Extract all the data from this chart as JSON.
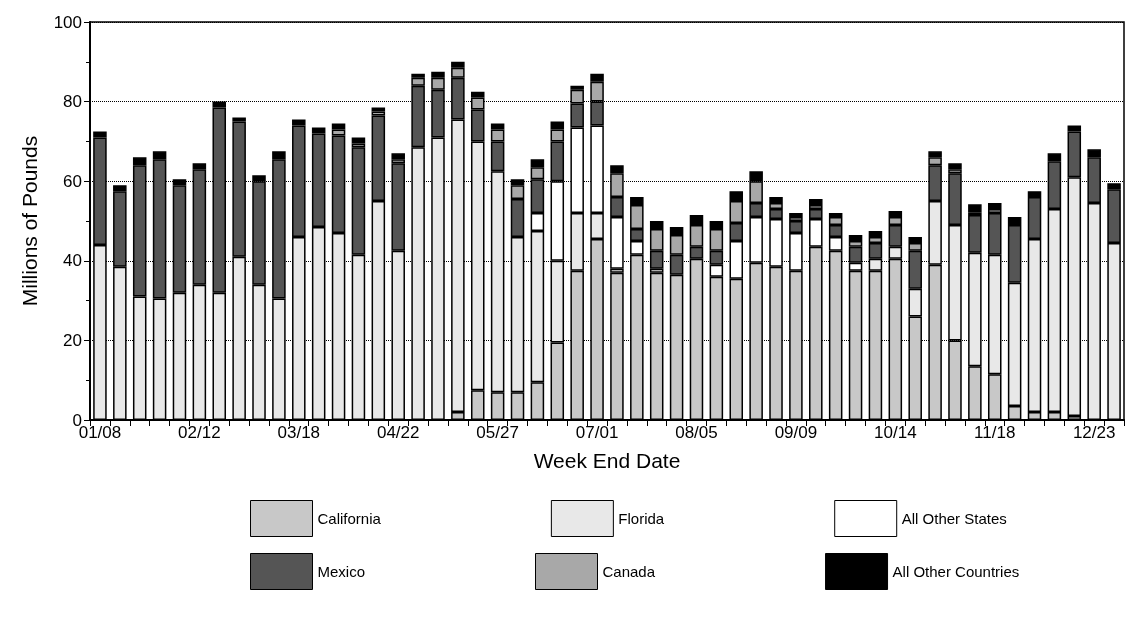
{
  "chart_data": {
    "type": "bar",
    "stacked": true,
    "xlabel": "Week End Date",
    "ylabel": "Millions of Pounds",
    "categories": [
      "01/08",
      null,
      null,
      null,
      null,
      "02/12",
      null,
      null,
      null,
      null,
      "03/18",
      null,
      null,
      null,
      null,
      "04/22",
      null,
      null,
      null,
      null,
      "05/27",
      null,
      null,
      null,
      null,
      "07/01",
      null,
      null,
      null,
      null,
      "08/05",
      null,
      null,
      null,
      null,
      "09/09",
      null,
      null,
      null,
      null,
      "10/14",
      null,
      null,
      null,
      null,
      "11/18",
      null,
      null,
      null,
      null,
      "12/23",
      null
    ],
    "series": [
      {
        "name": "California",
        "color": "#c8c8c8",
        "values": [
          0,
          0,
          0,
          0,
          0,
          0,
          0,
          0,
          0,
          0,
          0,
          0,
          0,
          0,
          0,
          0,
          0,
          0,
          2,
          7.5,
          7,
          7,
          9.5,
          19.5,
          37.5,
          45.5,
          37,
          41.5,
          37,
          36.5,
          40.5,
          36,
          35.5,
          39.5,
          38.5,
          37.5,
          43.5,
          42.5,
          37.5,
          37.5,
          40.5,
          26,
          39,
          20,
          13.5,
          11.5,
          3.5,
          2,
          2,
          1,
          0,
          0
        ]
      },
      {
        "name": "Florida",
        "color": "#e8e8e8",
        "values": [
          44,
          38.5,
          31,
          30.5,
          32,
          34,
          32,
          41,
          34,
          30.5,
          46,
          48.5,
          47,
          41.5,
          55,
          42.5,
          68.5,
          71,
          73.5,
          62.5,
          55.5,
          39,
          38,
          20.5,
          14.5,
          6.5,
          1,
          0,
          1,
          0,
          0,
          0,
          0,
          0,
          0,
          0,
          0,
          0,
          0,
          3,
          3,
          7,
          16,
          29,
          28.5,
          30,
          31,
          43.5,
          51,
          60,
          54.5,
          44.5
        ]
      },
      {
        "name": "All Other States",
        "color": "#ffffff",
        "values": [
          0,
          0,
          0,
          0,
          0,
          0,
          0,
          0,
          0,
          0,
          0,
          0,
          0,
          0,
          0,
          0,
          0,
          0,
          0,
          0,
          0,
          0,
          4.5,
          20,
          21.5,
          22,
          13,
          3.5,
          0,
          0,
          0,
          3,
          9.5,
          11.5,
          12,
          9.5,
          7,
          3.5,
          2,
          0,
          0,
          0,
          0,
          0,
          0,
          0,
          0,
          0,
          0,
          0,
          0,
          0
        ]
      },
      {
        "name": "Mexico",
        "color": "#555555",
        "values": [
          27,
          19,
          33,
          35,
          27,
          29,
          46.5,
          34,
          26,
          35,
          28,
          23.5,
          24.5,
          27,
          21.5,
          22,
          15.5,
          12,
          10.5,
          8,
          7.5,
          9.5,
          8.5,
          10,
          6,
          6,
          5,
          3,
          4.5,
          5,
          3,
          3.5,
          4.5,
          3.5,
          2.5,
          3,
          2.5,
          3,
          4,
          4,
          5.5,
          9.5,
          9,
          13,
          9.5,
          10.5,
          14.5,
          10.5,
          12,
          11.5,
          11.5,
          13.5
        ]
      },
      {
        "name": "Canada",
        "color": "#a8a8a8",
        "values": [
          0,
          0,
          0,
          0,
          0,
          0,
          0,
          0,
          0,
          0,
          0,
          0,
          1.5,
          1,
          1,
          1,
          2,
          3,
          2.5,
          3,
          3,
          3.5,
          3,
          3,
          3.5,
          5,
          6,
          6,
          5.5,
          5,
          5.5,
          5.5,
          5.5,
          5.5,
          1.5,
          1,
          1,
          2,
          1.5,
          1.5,
          2,
          2,
          2,
          1,
          0.7,
          1,
          0.5,
          0,
          0,
          0,
          0,
          0
        ]
      },
      {
        "name": "All Other Countries",
        "color": "#000000",
        "values": [
          1.5,
          1.5,
          2,
          2,
          1.5,
          1.5,
          1.5,
          1,
          1.5,
          2,
          1.5,
          1.5,
          1.5,
          1.5,
          1,
          1.5,
          1,
          1.5,
          1.5,
          1.5,
          1.5,
          1.5,
          2,
          2,
          1,
          2,
          2,
          2,
          2,
          2,
          2.5,
          2,
          2.5,
          2.5,
          1.5,
          1,
          1.5,
          1,
          1.5,
          1.5,
          1.5,
          1.5,
          1.5,
          1.5,
          2,
          1.5,
          1.5,
          1.5,
          2,
          1.5,
          2,
          1.5
        ]
      }
    ],
    "ylim": [
      0,
      100
    ],
    "yticks": [
      0,
      20,
      40,
      60,
      80,
      100
    ],
    "grid": "y",
    "legend": "bottom"
  }
}
